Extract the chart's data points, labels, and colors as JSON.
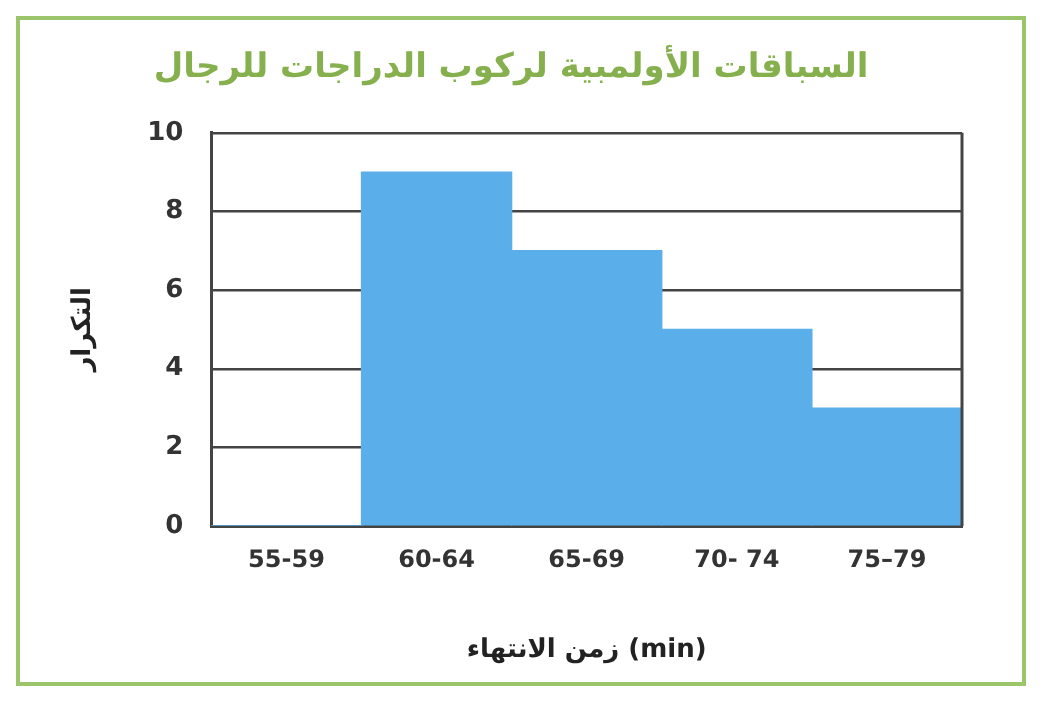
{
  "chart_data": {
    "type": "bar",
    "title": "السباقات الأولمبية لركوب الدراجات للرجال",
    "xlabel": "زمن الانتهاء (min)",
    "ylabel": "التكرار",
    "categories": [
      "55-59",
      "60-64",
      "65-69",
      "70- 74",
      "75–79"
    ],
    "values": [
      0,
      9,
      7,
      5,
      3
    ],
    "color": "#5aaeea",
    "ylim": [
      0,
      10
    ],
    "yticks": [
      0,
      2,
      4,
      6,
      8,
      10
    ],
    "grid": "y"
  }
}
